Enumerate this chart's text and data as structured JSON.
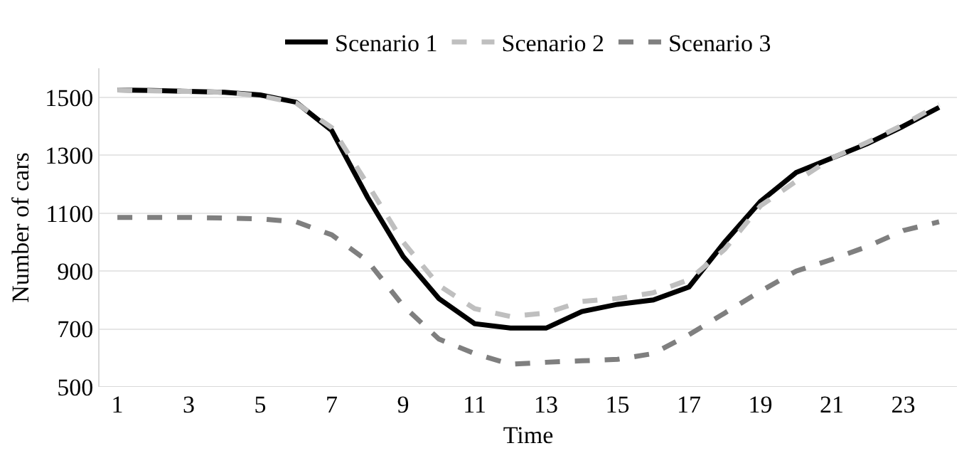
{
  "chart_data": {
    "type": "line",
    "xlabel": "Time",
    "ylabel": "Number of cars",
    "x": [
      1,
      2,
      3,
      4,
      5,
      6,
      7,
      8,
      9,
      10,
      11,
      12,
      13,
      14,
      15,
      16,
      17,
      18,
      19,
      20,
      21,
      22,
      23,
      24
    ],
    "xlim": [
      0.5,
      24.5
    ],
    "xticks": [
      1,
      3,
      5,
      7,
      9,
      11,
      13,
      15,
      17,
      19,
      21,
      23
    ],
    "ylim": [
      500,
      1600
    ],
    "yticks": [
      500,
      700,
      900,
      1100,
      1300,
      1500
    ],
    "grid": "y",
    "legend": "top",
    "marker": "none",
    "series": [
      {
        "name": "Scenario 1",
        "color": "#000000",
        "line_style": "solid",
        "values": [
          1525,
          1523,
          1520,
          1517,
          1508,
          1483,
          1385,
          1155,
          950,
          805,
          718,
          703,
          703,
          760,
          785,
          800,
          845,
          1000,
          1140,
          1240,
          1290,
          1340,
          1400,
          1465
        ]
      },
      {
        "name": "Scenario 2",
        "color": "#bfbfbf",
        "line_style": "dashed",
        "values": [
          1525,
          1522,
          1520,
          1517,
          1505,
          1480,
          1395,
          1200,
          1000,
          850,
          770,
          743,
          755,
          795,
          805,
          825,
          870,
          975,
          1125,
          1210,
          1290,
          1345,
          1405,
          1475
        ]
      },
      {
        "name": "Scenario 3",
        "color": "#7f7f7f",
        "line_style": "dashed",
        "values": [
          1085,
          1085,
          1085,
          1083,
          1080,
          1070,
          1025,
          935,
          780,
          665,
          615,
          578,
          585,
          590,
          595,
          615,
          680,
          755,
          830,
          900,
          940,
          985,
          1040,
          1070
        ]
      }
    ]
  }
}
